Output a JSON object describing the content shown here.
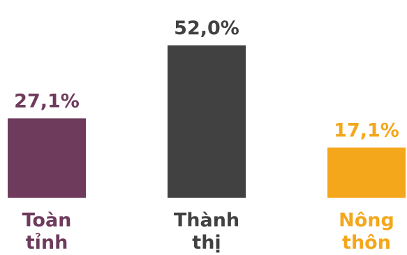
{
  "chart_data": {
    "type": "bar",
    "categories": [
      [
        "Toàn",
        "tỉnh"
      ],
      [
        "Thành",
        "thị"
      ],
      [
        "Nông",
        "thôn"
      ]
    ],
    "values": [
      27.1,
      52.0,
      17.1
    ],
    "value_labels": [
      "27,1%",
      "52,0%",
      "17,1%"
    ],
    "colors": [
      "#6e3b5c",
      "#414141",
      "#f4a71b"
    ],
    "ylim": [
      0,
      52.0
    ],
    "grid": false,
    "title": "",
    "xlabel": "",
    "ylabel": ""
  }
}
